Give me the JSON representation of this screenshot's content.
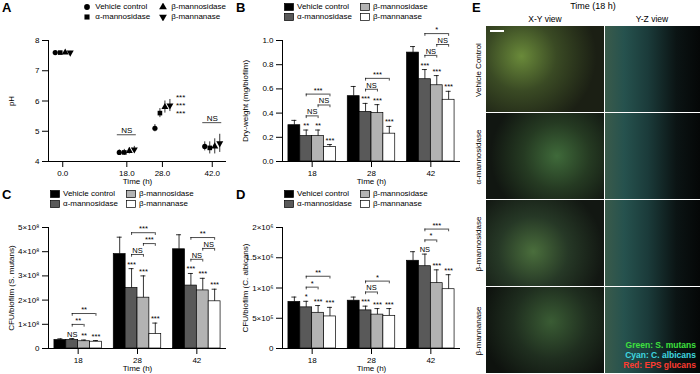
{
  "chart_data": [
    {
      "panel": "A",
      "type": "scatter",
      "xlabel": "Time (h)",
      "ylabel": "pH",
      "x": [
        0,
        18,
        28,
        42
      ],
      "xlim": [
        -4,
        46
      ],
      "xticks": [
        {
          "value": 0,
          "label": "0.0"
        },
        {
          "value": 18,
          "label": "18.0"
        },
        {
          "value": 28,
          "label": "28.0"
        },
        {
          "value": 42,
          "label": "42.0"
        }
      ],
      "ylim": [
        4,
        8
      ],
      "yticks": [
        4,
        5,
        6,
        7,
        8
      ],
      "legend": "upper right",
      "series": [
        {
          "name": "Vehicle control",
          "color": "#000000",
          "marker": "circle",
          "values": [
            7.6,
            4.3,
            5.1,
            4.5
          ],
          "errors": [
            0.04,
            0.08,
            0.12,
            0.15
          ]
        },
        {
          "name": "α-mannosidase",
          "color": "#000000",
          "marker": "square",
          "values": [
            7.6,
            4.3,
            5.6,
            4.45
          ],
          "errors": [
            0.04,
            0.1,
            0.15,
            0.2
          ]
        },
        {
          "name": "β-mannosidase",
          "color": "#000000",
          "marker": "triangle",
          "values": [
            7.6,
            4.35,
            5.8,
            4.5
          ],
          "errors": [
            0.04,
            0.1,
            0.2,
            0.25
          ]
        },
        {
          "name": "β-mannanase",
          "color": "#000000",
          "marker": "triangle-down",
          "values": [
            7.6,
            4.4,
            5.85,
            4.6
          ],
          "errors": [
            0.04,
            0.1,
            0.2,
            0.3
          ]
        }
      ],
      "significance": [
        [
          null,
          null,
          null,
          null
        ],
        [
          null,
          null,
          null,
          null
        ],
        [
          null,
          "***",
          "***",
          "***"
        ],
        [
          null,
          null,
          null,
          null
        ]
      ],
      "brackets": [
        [],
        [
          {
            "from": 0,
            "to": 3,
            "label": "NS"
          }
        ],
        [],
        [
          {
            "from": 0,
            "to": 3,
            "label": "NS"
          }
        ]
      ]
    },
    {
      "panel": "B",
      "type": "bar",
      "xlabel": "Time (h)",
      "ylabel": "Dry-weight (mg/biofilm)",
      "categories": [
        "18",
        "28",
        "42"
      ],
      "ylim": [
        0,
        1
      ],
      "yticks": [
        {
          "value": 0,
          "label": "0.0"
        },
        0.2,
        0.4,
        0.6,
        0.8,
        {
          "value": 1,
          "label": "1.0"
        }
      ],
      "legend": "upper left",
      "series": [
        {
          "name": "Vehicle control",
          "color": "#000000",
          "values": [
            0.3,
            0.54,
            0.9
          ],
          "errors": [
            0.04,
            0.08,
            0.05
          ]
        },
        {
          "name": "α-mannosidase",
          "color": "#595959",
          "values": [
            0.21,
            0.41,
            0.68
          ],
          "errors": [
            0.05,
            0.07,
            0.08
          ]
        },
        {
          "name": "β-mannosidase",
          "color": "#b3b3b3",
          "values": [
            0.21,
            0.4,
            0.63
          ],
          "errors": [
            0.05,
            0.07,
            0.08
          ]
        },
        {
          "name": "β-mannanase",
          "color": "#ffffff",
          "values": [
            0.12,
            0.23,
            0.51
          ],
          "errors": [
            0.02,
            0.06,
            0.07
          ]
        }
      ],
      "significance": [
        [
          null,
          "**",
          "**",
          "***"
        ],
        [
          null,
          "***",
          "***",
          "***"
        ],
        [
          null,
          "***",
          "***",
          "***"
        ]
      ],
      "brackets": [
        [
          {
            "from": 1,
            "to": 2,
            "label": "NS"
          },
          {
            "from": 2,
            "to": 3,
            "label": "NS"
          },
          {
            "from": 1,
            "to": 3,
            "label": "***"
          }
        ],
        [
          {
            "from": 1,
            "to": 2,
            "label": "NS"
          },
          {
            "from": 1,
            "to": 3,
            "label": "***"
          }
        ],
        [
          {
            "from": 1,
            "to": 2,
            "label": "NS"
          },
          {
            "from": 2,
            "to": 3,
            "label": "NS"
          },
          {
            "from": 1,
            "to": 3,
            "label": "*"
          }
        ]
      ]
    },
    {
      "panel": "C",
      "type": "bar",
      "xlabel": "Time (h)",
      "ylabel": "CFU/biofilm (S. mutans)",
      "categories": [
        "18",
        "28",
        "42"
      ],
      "ylim": [
        0,
        500000000
      ],
      "yticks": [
        0,
        {
          "value": 100000000,
          "label": "1×10⁸"
        },
        {
          "value": 200000000,
          "label": "2×10⁸"
        },
        {
          "value": 300000000,
          "label": "3×10⁸"
        },
        {
          "value": 400000000,
          "label": "4×10⁸"
        },
        {
          "value": 500000000,
          "label": "5×10⁸"
        }
      ],
      "legend": "upper left",
      "series": [
        {
          "name": "Vehicle control",
          "color": "#000000",
          "values": [
            35000000,
            390000000,
            410000000
          ],
          "errors": [
            5000000,
            70000000,
            60000000
          ]
        },
        {
          "name": "α-mannosidase",
          "color": "#595959",
          "values": [
            35000000,
            250000000,
            260000000
          ],
          "errors": [
            6000000,
            80000000,
            50000000
          ]
        },
        {
          "name": "β-mannosidase",
          "color": "#b3b3b3",
          "values": [
            30000000,
            210000000,
            240000000
          ],
          "errors": [
            5000000,
            90000000,
            50000000
          ]
        },
        {
          "name": "β-mannanase",
          "color": "#ffffff",
          "values": [
            28000000,
            60000000,
            195000000
          ],
          "errors": [
            5000000,
            45000000,
            50000000
          ]
        }
      ],
      "significance": [
        [
          null,
          "NS",
          "**",
          "***"
        ],
        [
          null,
          "***",
          "***",
          "***"
        ],
        [
          null,
          "***",
          "***",
          "***"
        ]
      ],
      "brackets": [
        [
          {
            "from": 1,
            "to": 2,
            "label": "**"
          },
          {
            "from": 1,
            "to": 3,
            "label": "**"
          }
        ],
        [
          {
            "from": 1,
            "to": 2,
            "label": "NS"
          },
          {
            "from": 2,
            "to": 3,
            "label": "***"
          },
          {
            "from": 1,
            "to": 3,
            "label": "***"
          }
        ],
        [
          {
            "from": 1,
            "to": 2,
            "label": "NS"
          },
          {
            "from": 2,
            "to": 3,
            "label": "NS"
          },
          {
            "from": 1,
            "to": 3,
            "label": "**"
          }
        ]
      ]
    },
    {
      "panel": "D",
      "type": "bar",
      "xlabel": "Time (h)",
      "ylabel": "CFU/biofilm (C. albicans)",
      "categories": [
        "18",
        "28",
        "42"
      ],
      "ylim": [
        0,
        2000000
      ],
      "yticks": [
        0,
        {
          "value": 500000,
          "label": "5×10⁵"
        },
        {
          "value": 1000000,
          "label": "1×10⁶"
        },
        {
          "value": 1500000,
          "label": "1.5×10⁶"
        },
        {
          "value": 2000000,
          "label": "2×10⁶"
        }
      ],
      "legend": "upper left",
      "series": [
        {
          "name": "Vehicel control",
          "color": "#000000",
          "values": [
            770000,
            790000,
            1450000
          ],
          "errors": [
            80000,
            60000,
            150000
          ]
        },
        {
          "name": "α-mannosidase",
          "color": "#595959",
          "values": [
            680000,
            630000,
            1360000
          ],
          "errors": [
            100000,
            70000,
            200000
          ]
        },
        {
          "name": "β-mannosidase",
          "color": "#b3b3b3",
          "values": [
            590000,
            560000,
            1080000
          ],
          "errors": [
            120000,
            100000,
            220000
          ]
        },
        {
          "name": "β-mannanase",
          "color": "#ffffff",
          "values": [
            530000,
            540000,
            980000
          ],
          "errors": [
            150000,
            120000,
            240000
          ]
        }
      ],
      "significance": [
        [
          null,
          "*",
          "***",
          "***"
        ],
        [
          null,
          "***",
          "***",
          "***"
        ],
        [
          null,
          "NS",
          "***",
          "***"
        ]
      ],
      "brackets": [
        [
          {
            "from": 1,
            "to": 2,
            "label": "*"
          },
          {
            "from": 1,
            "to": 3,
            "label": "**"
          }
        ],
        [
          {
            "from": 1,
            "to": 2,
            "label": "NS"
          },
          {
            "from": 1,
            "to": 3,
            "label": "*"
          }
        ],
        [
          {
            "from": 1,
            "to": 2,
            "label": "*"
          },
          {
            "from": 1,
            "to": 3,
            "label": "***"
          }
        ]
      ]
    }
  ],
  "image_panel": {
    "panel": "E",
    "title": "Time (18 h)",
    "columns": [
      "X-Y view",
      "Y-Z view"
    ],
    "rows": [
      "Vehicle Control",
      "α-mannosidase",
      "β-mannosidase",
      "β-mannanase"
    ],
    "legend": [
      {
        "text": "Green: S. mutans",
        "color": "#3ee03e"
      },
      {
        "text": "Cyan: C. albicans",
        "color": "#3fd8e0"
      },
      {
        "text": "Red: EPS glucans",
        "color": "#ff3b30"
      }
    ]
  }
}
